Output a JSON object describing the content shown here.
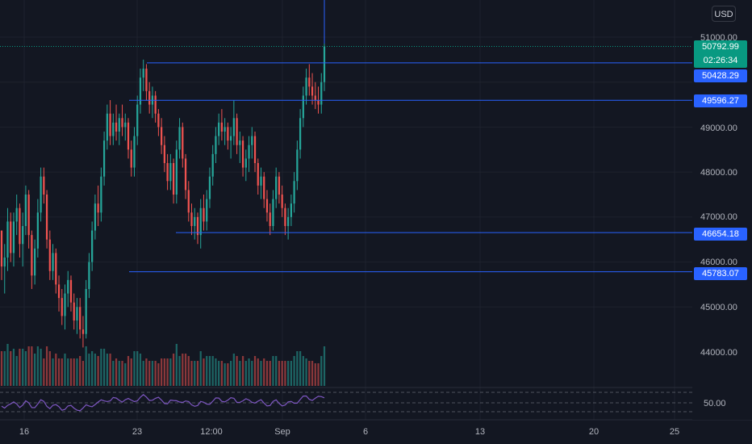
{
  "currency_button": "USD",
  "price_axis": {
    "ticks": [
      "51000.00",
      "49000.00",
      "48000.00",
      "47000.00",
      "46000.00",
      "45000.00",
      "44000.00"
    ],
    "last_price": {
      "value": "50792.99",
      "countdown": "02:26:34",
      "color": "#089981"
    },
    "level_tags": [
      "50428.29",
      "49596.27",
      "46654.18",
      "45783.07"
    ],
    "level_color": "#2962ff"
  },
  "rsi_axis": {
    "tick": "50.00",
    "line_color": "#7e57c2"
  },
  "time_axis": {
    "labels": [
      "16",
      "23",
      "12:00",
      "Sep",
      "6",
      "13",
      "20",
      "25"
    ]
  },
  "chart_data": {
    "type": "candlestick",
    "title": "",
    "ylim": [
      43200,
      51700
    ],
    "horizontal_levels": [
      50428.29,
      49596.27,
      46654.18,
      45783.07
    ],
    "last_price": 50792.99,
    "up_color": "#26a69a",
    "down_color": "#ef5350",
    "candles": [
      [
        46700,
        46700,
        45600,
        45900
      ],
      [
        45900,
        46400,
        45300,
        46100
      ],
      [
        46100,
        47200,
        45800,
        46900
      ],
      [
        46900,
        47100,
        46000,
        46200
      ],
      [
        46200,
        47100,
        45900,
        46900
      ],
      [
        46900,
        47500,
        46600,
        47200
      ],
      [
        47200,
        47300,
        46100,
        46400
      ],
      [
        46400,
        47100,
        45900,
        46800
      ],
      [
        46800,
        47700,
        46600,
        47500
      ],
      [
        47500,
        47600,
        46300,
        46600
      ],
      [
        46600,
        46700,
        45400,
        45700
      ],
      [
        45700,
        46500,
        45500,
        46300
      ],
      [
        46300,
        47400,
        46100,
        47100
      ],
      [
        47100,
        48100,
        46900,
        47900
      ],
      [
        47900,
        48100,
        47300,
        47500
      ],
      [
        47500,
        47600,
        46300,
        46500
      ],
      [
        46500,
        46700,
        45600,
        45800
      ],
      [
        45800,
        46400,
        45600,
        46200
      ],
      [
        46200,
        46300,
        45300,
        45500
      ],
      [
        45500,
        45700,
        44900,
        45200
      ],
      [
        45200,
        45400,
        44600,
        44800
      ],
      [
        44800,
        45500,
        44500,
        45300
      ],
      [
        45300,
        45800,
        45000,
        45600
      ],
      [
        45600,
        45700,
        44900,
        45100
      ],
      [
        45100,
        45300,
        44500,
        44700
      ],
      [
        44700,
        45200,
        44400,
        45000
      ],
      [
        45000,
        45200,
        44300,
        44500
      ],
      [
        44500,
        44800,
        44100,
        44400
      ],
      [
        44400,
        45600,
        44300,
        45400
      ],
      [
        45400,
        46200,
        45200,
        46000
      ],
      [
        46000,
        46900,
        45800,
        46700
      ],
      [
        46700,
        47500,
        46500,
        47300
      ],
      [
        47300,
        47700,
        46800,
        47100
      ],
      [
        47100,
        48100,
        46900,
        47900
      ],
      [
        47900,
        48900,
        47700,
        48700
      ],
      [
        48700,
        49500,
        48500,
        49300
      ],
      [
        49300,
        49600,
        48600,
        48800
      ],
      [
        48800,
        49300,
        48600,
        49100
      ],
      [
        49100,
        49500,
        48700,
        48900
      ],
      [
        48900,
        49300,
        48600,
        49200
      ],
      [
        49200,
        49500,
        48800,
        49000
      ],
      [
        49000,
        49300,
        48700,
        49100
      ],
      [
        49100,
        49200,
        48300,
        48500
      ],
      [
        48500,
        48700,
        47900,
        48100
      ],
      [
        48100,
        49000,
        47900,
        48800
      ],
      [
        48800,
        49700,
        48600,
        49500
      ],
      [
        49500,
        50300,
        49300,
        50100
      ],
      [
        50100,
        50500,
        49800,
        50300
      ],
      [
        50300,
        50400,
        49600,
        49800
      ],
      [
        49800,
        50000,
        49300,
        49500
      ],
      [
        49500,
        49900,
        49200,
        49700
      ],
      [
        49700,
        49800,
        49100,
        49300
      ],
      [
        49300,
        49400,
        48800,
        49000
      ],
      [
        49000,
        49200,
        48400,
        48600
      ],
      [
        48600,
        48800,
        48000,
        48200
      ],
      [
        48200,
        48400,
        47600,
        47800
      ],
      [
        47800,
        48400,
        47600,
        48200
      ],
      [
        48200,
        48300,
        47300,
        47500
      ],
      [
        47500,
        48700,
        47300,
        48500
      ],
      [
        48500,
        49200,
        48300,
        49000
      ],
      [
        49000,
        49100,
        48100,
        48300
      ],
      [
        48300,
        48400,
        47400,
        47600
      ],
      [
        47600,
        47800,
        46900,
        47100
      ],
      [
        47100,
        47300,
        46600,
        46800
      ],
      [
        46800,
        47200,
        46500,
        47000
      ],
      [
        47000,
        47100,
        46400,
        46600
      ],
      [
        46600,
        47400,
        46300,
        47200
      ],
      [
        47200,
        47500,
        46700,
        46900
      ],
      [
        46900,
        47600,
        46700,
        47400
      ],
      [
        47400,
        48100,
        47200,
        47900
      ],
      [
        47900,
        48600,
        47700,
        48400
      ],
      [
        48400,
        49000,
        48200,
        48800
      ],
      [
        48800,
        49300,
        48600,
        49100
      ],
      [
        49100,
        49400,
        48700,
        48900
      ],
      [
        48900,
        49200,
        48600,
        49000
      ],
      [
        49000,
        49100,
        48500,
        48700
      ],
      [
        48700,
        49000,
        48300,
        48800
      ],
      [
        48800,
        49600,
        48600,
        49200
      ],
      [
        49200,
        49300,
        48400,
        48600
      ],
      [
        48600,
        48900,
        48200,
        48700
      ],
      [
        48700,
        48800,
        47900,
        48100
      ],
      [
        48100,
        48500,
        47800,
        48300
      ],
      [
        48300,
        48800,
        48000,
        48600
      ],
      [
        48600,
        49000,
        48300,
        48800
      ],
      [
        48800,
        48900,
        48000,
        48200
      ],
      [
        48200,
        48300,
        47500,
        47700
      ],
      [
        47700,
        48100,
        47400,
        47900
      ],
      [
        47900,
        48000,
        47200,
        47400
      ],
      [
        47400,
        47600,
        46900,
        47100
      ],
      [
        47100,
        47300,
        46600,
        46800
      ],
      [
        46800,
        47600,
        46700,
        47400
      ],
      [
        47400,
        48100,
        47200,
        47900
      ],
      [
        47900,
        48000,
        47300,
        47500
      ],
      [
        47500,
        47700,
        47000,
        47200
      ],
      [
        47200,
        47300,
        46600,
        46800
      ],
      [
        46800,
        47200,
        46500,
        47000
      ],
      [
        47000,
        47500,
        46800,
        47300
      ],
      [
        47300,
        48000,
        47100,
        47800
      ],
      [
        47800,
        48700,
        47600,
        48500
      ],
      [
        48500,
        49400,
        48300,
        49200
      ],
      [
        49200,
        49900,
        49000,
        49700
      ],
      [
        49700,
        50300,
        49500,
        50100
      ],
      [
        50100,
        50400,
        49700,
        49900
      ],
      [
        49900,
        50200,
        49500,
        49700
      ],
      [
        49700,
        50000,
        49400,
        49600
      ],
      [
        49600,
        49900,
        49300,
        49500
      ],
      [
        49500,
        50200,
        49300,
        50000
      ],
      [
        50000,
        51100,
        49800,
        50793
      ]
    ]
  }
}
